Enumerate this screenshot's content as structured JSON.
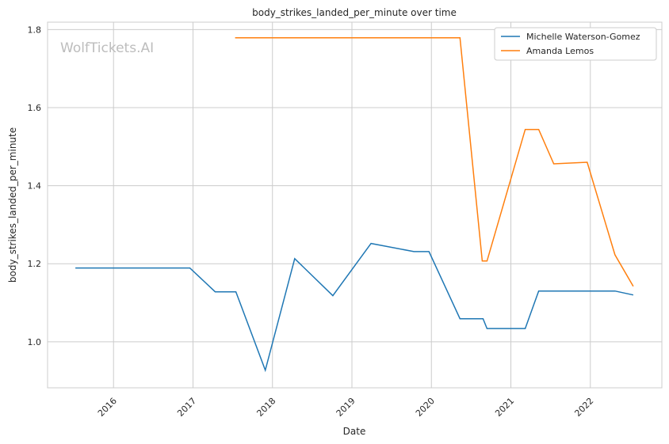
{
  "chart_data": {
    "type": "line",
    "title": "body_strikes_landed_per_minute over time",
    "xlabel": "Date",
    "ylabel": "body_strikes_landed_per_minute",
    "watermark": "WolfTickets.AI",
    "xlim": [
      2015.17,
      2022.9
    ],
    "ylim": [
      0.882,
      1.819
    ],
    "x_ticks": [
      2016,
      2017,
      2018,
      2019,
      2020,
      2021,
      2022
    ],
    "x_tick_labels": [
      "2016",
      "2017",
      "2018",
      "2019",
      "2020",
      "2021",
      "2022"
    ],
    "y_ticks": [
      1.0,
      1.2,
      1.4,
      1.6,
      1.8
    ],
    "y_tick_labels": [
      "1.0",
      "1.2",
      "1.4",
      "1.6",
      "1.8"
    ],
    "grid": true,
    "legend_position": "top-right",
    "series": [
      {
        "name": "Michelle Waterson-Gomez",
        "color": "#1f77b4",
        "x": [
          2015.52,
          2016.96,
          2017.28,
          2017.54,
          2017.91,
          2018.28,
          2018.76,
          2019.24,
          2019.78,
          2019.97,
          2020.36,
          2020.65,
          2020.7,
          2021.18,
          2021.35,
          2022.31,
          2022.54
        ],
        "y": [
          1.189,
          1.189,
          1.128,
          1.128,
          0.927,
          1.213,
          1.118,
          1.252,
          1.231,
          1.231,
          1.059,
          1.059,
          1.034,
          1.034,
          1.13,
          1.13,
          1.12
        ]
      },
      {
        "name": "Amanda Lemos",
        "color": "#ff7f0e",
        "x": [
          2017.53,
          2020.36,
          2020.64,
          2020.7,
          2021.18,
          2021.35,
          2021.54,
          2021.96,
          2022.31,
          2022.54
        ],
        "y": [
          1.779,
          1.779,
          1.207,
          1.207,
          1.544,
          1.544,
          1.456,
          1.46,
          1.223,
          1.142
        ]
      }
    ]
  }
}
